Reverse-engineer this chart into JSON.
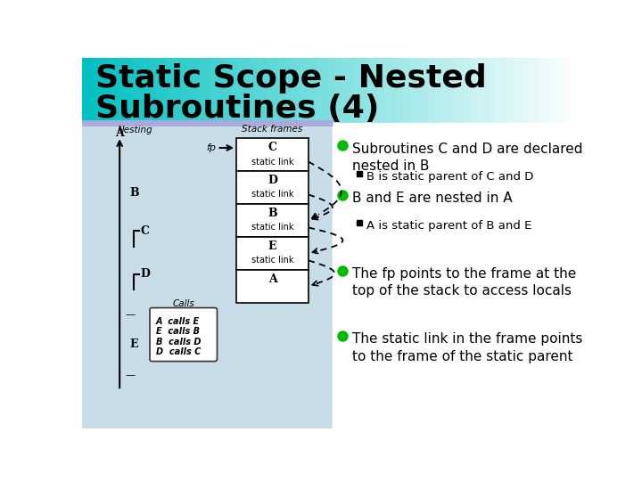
{
  "title_line1": "Static Scope - Nested",
  "title_line2": "Subroutines (4)",
  "title_color": "#000000",
  "title_fontsize": 26,
  "bg_color": "#ffffff",
  "left_panel_bg": "#c8dde8",
  "bullet_color": "#00bb00",
  "bullet_points": [
    "Subroutines C and D are declared\nnested in B",
    "B and E are nested in A",
    "The fp points to the frame at the\ntop of the stack to access locals",
    "The static link in the frame points\nto the frame of the static parent"
  ],
  "sub_bullets": [
    [
      "B is static parent of C and D"
    ],
    [
      "A is static parent of B and E"
    ],
    [],
    []
  ],
  "stack_frames": [
    "C",
    "D",
    "B",
    "E",
    "A"
  ],
  "calls_text": [
    "A  calls E",
    "E  calls B",
    "B  calls D",
    "D  calls C"
  ],
  "fp_label": "fp",
  "teal_color": "#00c0c0",
  "sep_line_color": "#aaaadd"
}
